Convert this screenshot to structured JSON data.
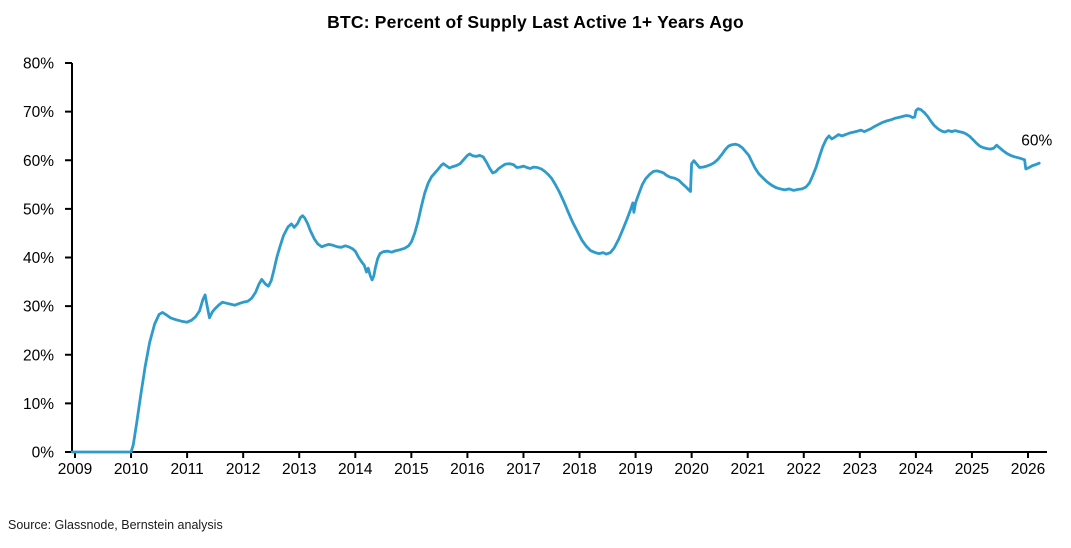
{
  "chart": {
    "title": "BTC: Percent of Supply Last Active 1+ Years Ago",
    "source": "Source: Glassnode, Bernstein analysis",
    "colors": {
      "line": "#2E9BCB",
      "axis": "#000000",
      "text": "#000000",
      "background": "#ffffff"
    }
  },
  "chart_data": {
    "type": "line",
    "title": "BTC: Percent of Supply Last Active 1+ Years Ago",
    "xlabel": "",
    "ylabel": "",
    "grid": false,
    "legend": "none",
    "xlim": [
      2009,
      2026.35
    ],
    "ylim": [
      0,
      80
    ],
    "x_ticks": [
      2009,
      2010,
      2011,
      2012,
      2013,
      2014,
      2015,
      2016,
      2017,
      2018,
      2019,
      2020,
      2021,
      2022,
      2023,
      2024,
      2025,
      2026
    ],
    "y_ticks": [
      0,
      10,
      20,
      30,
      40,
      50,
      60,
      70,
      80
    ],
    "y_tick_suffix": "%",
    "annotations": [
      {
        "text": "60%",
        "x": 2025.88,
        "y": 63.0
      }
    ],
    "series": [
      {
        "name": "BTC percent of supply last active 1+ years ago",
        "color": "#2E9BCB",
        "points": [
          [
            2008.95,
            0
          ],
          [
            2010.0,
            0
          ],
          [
            2010.04,
            1.5
          ],
          [
            2010.1,
            6
          ],
          [
            2010.17,
            11.5
          ],
          [
            2010.25,
            17.5
          ],
          [
            2010.33,
            22.5
          ],
          [
            2010.42,
            26.3
          ],
          [
            2010.5,
            28.3
          ],
          [
            2010.56,
            28.7
          ],
          [
            2010.63,
            28.2
          ],
          [
            2010.7,
            27.6
          ],
          [
            2010.8,
            27.2
          ],
          [
            2010.9,
            26.9
          ],
          [
            2011.0,
            26.7
          ],
          [
            2011.08,
            27.1
          ],
          [
            2011.15,
            27.8
          ],
          [
            2011.22,
            29.0
          ],
          [
            2011.28,
            31.3
          ],
          [
            2011.32,
            32.3
          ],
          [
            2011.35,
            30.5
          ],
          [
            2011.4,
            27.6
          ],
          [
            2011.45,
            28.8
          ],
          [
            2011.5,
            29.5
          ],
          [
            2011.57,
            30.3
          ],
          [
            2011.63,
            30.8
          ],
          [
            2011.7,
            30.6
          ],
          [
            2011.78,
            30.4
          ],
          [
            2011.85,
            30.2
          ],
          [
            2011.92,
            30.5
          ],
          [
            2012.0,
            30.8
          ],
          [
            2012.08,
            31.0
          ],
          [
            2012.15,
            31.6
          ],
          [
            2012.22,
            32.8
          ],
          [
            2012.28,
            34.5
          ],
          [
            2012.33,
            35.5
          ],
          [
            2012.4,
            34.5
          ],
          [
            2012.45,
            34.1
          ],
          [
            2012.5,
            35.2
          ],
          [
            2012.55,
            37.5
          ],
          [
            2012.6,
            40.0
          ],
          [
            2012.65,
            42.0
          ],
          [
            2012.72,
            44.5
          ],
          [
            2012.8,
            46.3
          ],
          [
            2012.86,
            46.9
          ],
          [
            2012.91,
            46.2
          ],
          [
            2012.97,
            47.0
          ],
          [
            2013.02,
            48.2
          ],
          [
            2013.06,
            48.6
          ],
          [
            2013.1,
            48.1
          ],
          [
            2013.15,
            47.0
          ],
          [
            2013.2,
            45.5
          ],
          [
            2013.27,
            43.8
          ],
          [
            2013.33,
            42.8
          ],
          [
            2013.4,
            42.2
          ],
          [
            2013.47,
            42.5
          ],
          [
            2013.53,
            42.7
          ],
          [
            2013.6,
            42.5
          ],
          [
            2013.68,
            42.2
          ],
          [
            2013.75,
            42.1
          ],
          [
            2013.82,
            42.4
          ],
          [
            2013.88,
            42.2
          ],
          [
            2013.95,
            41.8
          ],
          [
            2014.0,
            41.3
          ],
          [
            2014.06,
            40.0
          ],
          [
            2014.12,
            39.0
          ],
          [
            2014.16,
            38.4
          ],
          [
            2014.2,
            37.0
          ],
          [
            2014.23,
            37.8
          ],
          [
            2014.27,
            36.2
          ],
          [
            2014.3,
            35.4
          ],
          [
            2014.33,
            36.2
          ],
          [
            2014.36,
            38.0
          ],
          [
            2014.4,
            39.8
          ],
          [
            2014.44,
            40.8
          ],
          [
            2014.5,
            41.2
          ],
          [
            2014.58,
            41.3
          ],
          [
            2014.65,
            41.1
          ],
          [
            2014.72,
            41.4
          ],
          [
            2014.8,
            41.6
          ],
          [
            2014.88,
            41.9
          ],
          [
            2014.95,
            42.4
          ],
          [
            2015.0,
            43.2
          ],
          [
            2015.06,
            45.0
          ],
          [
            2015.12,
            47.5
          ],
          [
            2015.18,
            50.5
          ],
          [
            2015.24,
            53.3
          ],
          [
            2015.3,
            55.3
          ],
          [
            2015.36,
            56.6
          ],
          [
            2015.42,
            57.4
          ],
          [
            2015.48,
            58.2
          ],
          [
            2015.53,
            58.9
          ],
          [
            2015.57,
            59.3
          ],
          [
            2015.62,
            58.9
          ],
          [
            2015.68,
            58.4
          ],
          [
            2015.74,
            58.7
          ],
          [
            2015.8,
            58.9
          ],
          [
            2015.87,
            59.3
          ],
          [
            2015.93,
            60.1
          ],
          [
            2016.0,
            61.0
          ],
          [
            2016.04,
            61.3
          ],
          [
            2016.1,
            60.9
          ],
          [
            2016.16,
            60.8
          ],
          [
            2016.22,
            61.0
          ],
          [
            2016.28,
            60.7
          ],
          [
            2016.34,
            59.6
          ],
          [
            2016.4,
            58.3
          ],
          [
            2016.45,
            57.4
          ],
          [
            2016.5,
            57.6
          ],
          [
            2016.56,
            58.3
          ],
          [
            2016.62,
            58.8
          ],
          [
            2016.68,
            59.2
          ],
          [
            2016.75,
            59.3
          ],
          [
            2016.82,
            59.1
          ],
          [
            2016.88,
            58.5
          ],
          [
            2016.94,
            58.6
          ],
          [
            2017.0,
            58.8
          ],
          [
            2017.06,
            58.5
          ],
          [
            2017.12,
            58.3
          ],
          [
            2017.18,
            58.6
          ],
          [
            2017.25,
            58.5
          ],
          [
            2017.32,
            58.2
          ],
          [
            2017.38,
            57.7
          ],
          [
            2017.44,
            57.1
          ],
          [
            2017.5,
            56.3
          ],
          [
            2017.57,
            55.0
          ],
          [
            2017.64,
            53.5
          ],
          [
            2017.72,
            51.5
          ],
          [
            2017.8,
            49.3
          ],
          [
            2017.88,
            47.2
          ],
          [
            2017.96,
            45.4
          ],
          [
            2018.04,
            43.6
          ],
          [
            2018.12,
            42.3
          ],
          [
            2018.2,
            41.4
          ],
          [
            2018.28,
            41.0
          ],
          [
            2018.35,
            40.8
          ],
          [
            2018.42,
            41.0
          ],
          [
            2018.48,
            40.7
          ],
          [
            2018.55,
            41.0
          ],
          [
            2018.62,
            42.0
          ],
          [
            2018.7,
            43.8
          ],
          [
            2018.78,
            46.0
          ],
          [
            2018.85,
            48.0
          ],
          [
            2018.91,
            49.8
          ],
          [
            2018.95,
            51.2
          ],
          [
            2018.97,
            49.3
          ],
          [
            2019.0,
            51.3
          ],
          [
            2019.06,
            53.2
          ],
          [
            2019.12,
            55.0
          ],
          [
            2019.18,
            56.2
          ],
          [
            2019.25,
            57.1
          ],
          [
            2019.32,
            57.7
          ],
          [
            2019.38,
            57.8
          ],
          [
            2019.45,
            57.6
          ],
          [
            2019.5,
            57.4
          ],
          [
            2019.55,
            56.9
          ],
          [
            2019.62,
            56.5
          ],
          [
            2019.7,
            56.3
          ],
          [
            2019.77,
            55.9
          ],
          [
            2019.84,
            55.1
          ],
          [
            2019.9,
            54.5
          ],
          [
            2019.95,
            53.9
          ],
          [
            2019.98,
            53.6
          ],
          [
            2020.0,
            59.3
          ],
          [
            2020.04,
            59.9
          ],
          [
            2020.09,
            59.2
          ],
          [
            2020.14,
            58.5
          ],
          [
            2020.2,
            58.6
          ],
          [
            2020.27,
            58.8
          ],
          [
            2020.34,
            59.1
          ],
          [
            2020.4,
            59.5
          ],
          [
            2020.47,
            60.2
          ],
          [
            2020.54,
            61.2
          ],
          [
            2020.6,
            62.2
          ],
          [
            2020.66,
            62.9
          ],
          [
            2020.72,
            63.2
          ],
          [
            2020.78,
            63.3
          ],
          [
            2020.84,
            63.1
          ],
          [
            2020.9,
            62.6
          ],
          [
            2020.96,
            61.8
          ],
          [
            2021.02,
            61.0
          ],
          [
            2021.07,
            59.8
          ],
          [
            2021.13,
            58.4
          ],
          [
            2021.2,
            57.2
          ],
          [
            2021.27,
            56.4
          ],
          [
            2021.34,
            55.6
          ],
          [
            2021.42,
            54.9
          ],
          [
            2021.5,
            54.4
          ],
          [
            2021.58,
            54.1
          ],
          [
            2021.66,
            53.9
          ],
          [
            2021.74,
            54.1
          ],
          [
            2021.82,
            53.8
          ],
          [
            2021.9,
            54.0
          ],
          [
            2021.97,
            54.1
          ],
          [
            2022.04,
            54.5
          ],
          [
            2022.1,
            55.3
          ],
          [
            2022.16,
            56.8
          ],
          [
            2022.22,
            58.6
          ],
          [
            2022.28,
            60.8
          ],
          [
            2022.34,
            62.8
          ],
          [
            2022.4,
            64.3
          ],
          [
            2022.45,
            65.0
          ],
          [
            2022.5,
            64.4
          ],
          [
            2022.56,
            64.8
          ],
          [
            2022.62,
            65.3
          ],
          [
            2022.68,
            65.0
          ],
          [
            2022.75,
            65.3
          ],
          [
            2022.82,
            65.6
          ],
          [
            2022.9,
            65.8
          ],
          [
            2022.96,
            66.0
          ],
          [
            2023.02,
            66.2
          ],
          [
            2023.08,
            65.9
          ],
          [
            2023.14,
            66.2
          ],
          [
            2023.2,
            66.5
          ],
          [
            2023.27,
            67.0
          ],
          [
            2023.34,
            67.4
          ],
          [
            2023.41,
            67.8
          ],
          [
            2023.48,
            68.1
          ],
          [
            2023.55,
            68.3
          ],
          [
            2023.62,
            68.6
          ],
          [
            2023.69,
            68.8
          ],
          [
            2023.76,
            69.0
          ],
          [
            2023.83,
            69.2
          ],
          [
            2023.89,
            69.1
          ],
          [
            2023.94,
            68.8
          ],
          [
            2023.98,
            68.9
          ],
          [
            2024.0,
            70.2
          ],
          [
            2024.04,
            70.6
          ],
          [
            2024.09,
            70.4
          ],
          [
            2024.15,
            69.8
          ],
          [
            2024.21,
            69.0
          ],
          [
            2024.27,
            68.0
          ],
          [
            2024.33,
            67.1
          ],
          [
            2024.4,
            66.4
          ],
          [
            2024.46,
            66.0
          ],
          [
            2024.52,
            65.8
          ],
          [
            2024.58,
            66.1
          ],
          [
            2024.64,
            65.9
          ],
          [
            2024.7,
            66.1
          ],
          [
            2024.77,
            65.9
          ],
          [
            2024.84,
            65.7
          ],
          [
            2024.9,
            65.4
          ],
          [
            2024.96,
            64.9
          ],
          [
            2025.02,
            64.2
          ],
          [
            2025.08,
            63.5
          ],
          [
            2025.14,
            62.9
          ],
          [
            2025.2,
            62.6
          ],
          [
            2025.27,
            62.4
          ],
          [
            2025.33,
            62.3
          ],
          [
            2025.39,
            62.5
          ],
          [
            2025.44,
            63.1
          ],
          [
            2025.49,
            62.6
          ],
          [
            2025.55,
            62.0
          ],
          [
            2025.62,
            61.4
          ],
          [
            2025.69,
            61.0
          ],
          [
            2025.76,
            60.7
          ],
          [
            2025.83,
            60.5
          ],
          [
            2025.89,
            60.3
          ],
          [
            2025.94,
            60.1
          ],
          [
            2025.96,
            58.2
          ],
          [
            2026.02,
            58.5
          ],
          [
            2026.08,
            58.9
          ],
          [
            2026.14,
            59.1
          ],
          [
            2026.2,
            59.4
          ]
        ]
      }
    ]
  }
}
